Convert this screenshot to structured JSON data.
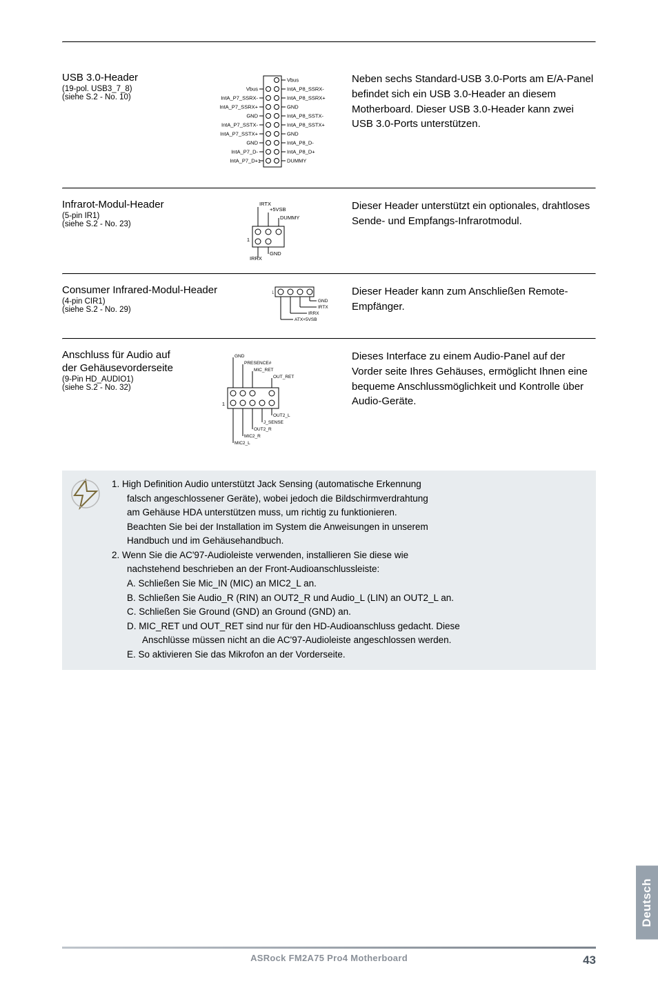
{
  "sections": [
    {
      "title": "USB 3.0-Header",
      "sub1": "(19-pol. USB3_7_8)",
      "sub2": "(siehe S.2 - No. 10)",
      "body": "Neben sechs Standard-USB 3.0-Ports am E/A-Panel befindet sich ein USB 3.0-Header an diesem Motherboard. Dieser USB 3.0-Header kann zwei USB 3.0-Ports unterstützen."
    },
    {
      "title": "Infrarot-Modul-Header",
      "sub1": "(5-pin IR1)",
      "sub2": "(siehe S.2 - No. 23)",
      "body": "Dieser Header unterstützt ein optionales, drahtloses Sende- und Empfangs-Infrarotmodul."
    },
    {
      "title": "Consumer Infrared-Modul-Header",
      "sub1": "(4-pin CIR1)",
      "sub2": "(siehe S.2 - No. 29)",
      "body": "Dieser Header kann zum Anschließen Remote-Empfänger."
    },
    {
      "title": "Anschluss für Audio auf",
      "title2": "der Gehäusevorderseite",
      "sub1": "(9-Pin HD_AUDIO1)",
      "sub2": "(siehe S.2 - No. 32)",
      "body": "Dieses Interface zu einem Audio-Panel auf der Vorder seite Ihres Gehäuses, ermöglicht Ihnen eine bequeme Anschlussmöglichkeit und Kontrolle über Audio-Geräte."
    }
  ],
  "usb_pins_right": [
    "Vbus",
    "IntA_P8_SSRX-",
    "IntA_P8_SSRX+",
    "GND",
    "IntA_P8_SSTX-",
    "IntA_P8_SSTX+",
    "GND",
    "IntA_P8_D-",
    "IntA_P8_D+",
    "DUMMY"
  ],
  "usb_pins_left": [
    "Vbus",
    "IntA_P7_SSRX-",
    "IntA_P7_SSRX+",
    "GND",
    "IntA_P7_SSTX-",
    "IntA_P7_SSTX+",
    "GND",
    "IntA_P7_D-",
    "IntA_P7_D+"
  ],
  "ir_labels": {
    "top": "IRTX",
    "topr": "+5VSB",
    "right": "DUMMY",
    "botl": "IRRX",
    "botc": "GND"
  },
  "cir_labels": {
    "r1": "GND",
    "r2": "IRTX",
    "r3": "IRRX",
    "r4": "ATX+5VSB"
  },
  "audio_labels": {
    "gnd": "GND",
    "pres": "PRESENCE#",
    "micret": "MIC_RET",
    "outret": "OUT_RET",
    "out2l": "OUT2_L",
    "jsense": "J_SENSE",
    "out2r": "OUT2_R",
    "mic2r": "MIC2_R",
    "mic2l": "MIC2_L"
  },
  "callout": {
    "lines": [
      {
        "cls": "",
        "t": "1. High Definition Audio unterstützt Jack Sensing (automatische Erkennung"
      },
      {
        "cls": "indent1",
        "t": "falsch angeschlossener Geräte), wobei jedoch die Bildschirmverdrahtung"
      },
      {
        "cls": "indent1",
        "t": "am Gehäuse HDA unterstützen muss, um richtig zu funktionieren."
      },
      {
        "cls": "indent1",
        "t": "Beachten Sie bei der Installation im System die Anweisungen in unserem"
      },
      {
        "cls": "indent1",
        "t": "Handbuch und im Gehäusehandbuch."
      },
      {
        "cls": "",
        "t": "2. Wenn Sie die AC'97-Audioleiste verwenden, installieren Sie diese wie"
      },
      {
        "cls": "indent1",
        "t": "nachstehend beschrieben an der Front-Audioanschlussleiste:"
      },
      {
        "cls": "indent1",
        "t": "A. Schließen Sie Mic_IN (MIC) an MIC2_L an."
      },
      {
        "cls": "indent1",
        "t": "B. Schließen Sie Audio_R (RIN) an OUT2_R und Audio_L (LIN) an OUT2_L an."
      },
      {
        "cls": "indent1",
        "t": "C. Schließen Sie Ground (GND) an Ground (GND) an."
      },
      {
        "cls": "indent1",
        "t": "D. MIC_RET und OUT_RET sind nur für den HD-Audioanschluss gedacht. Diese"
      },
      {
        "cls": "indent2",
        "t": "Anschlüsse müssen nicht an die AC'97-Audioleiste angeschlossen werden."
      },
      {
        "cls": "indent1",
        "t": "E. So aktivieren Sie das Mikrofon an der Vorderseite."
      }
    ]
  },
  "side_tab": "Deutsch",
  "footer": "ASRock FM2A75 Pro4 Motherboard",
  "page": "43"
}
